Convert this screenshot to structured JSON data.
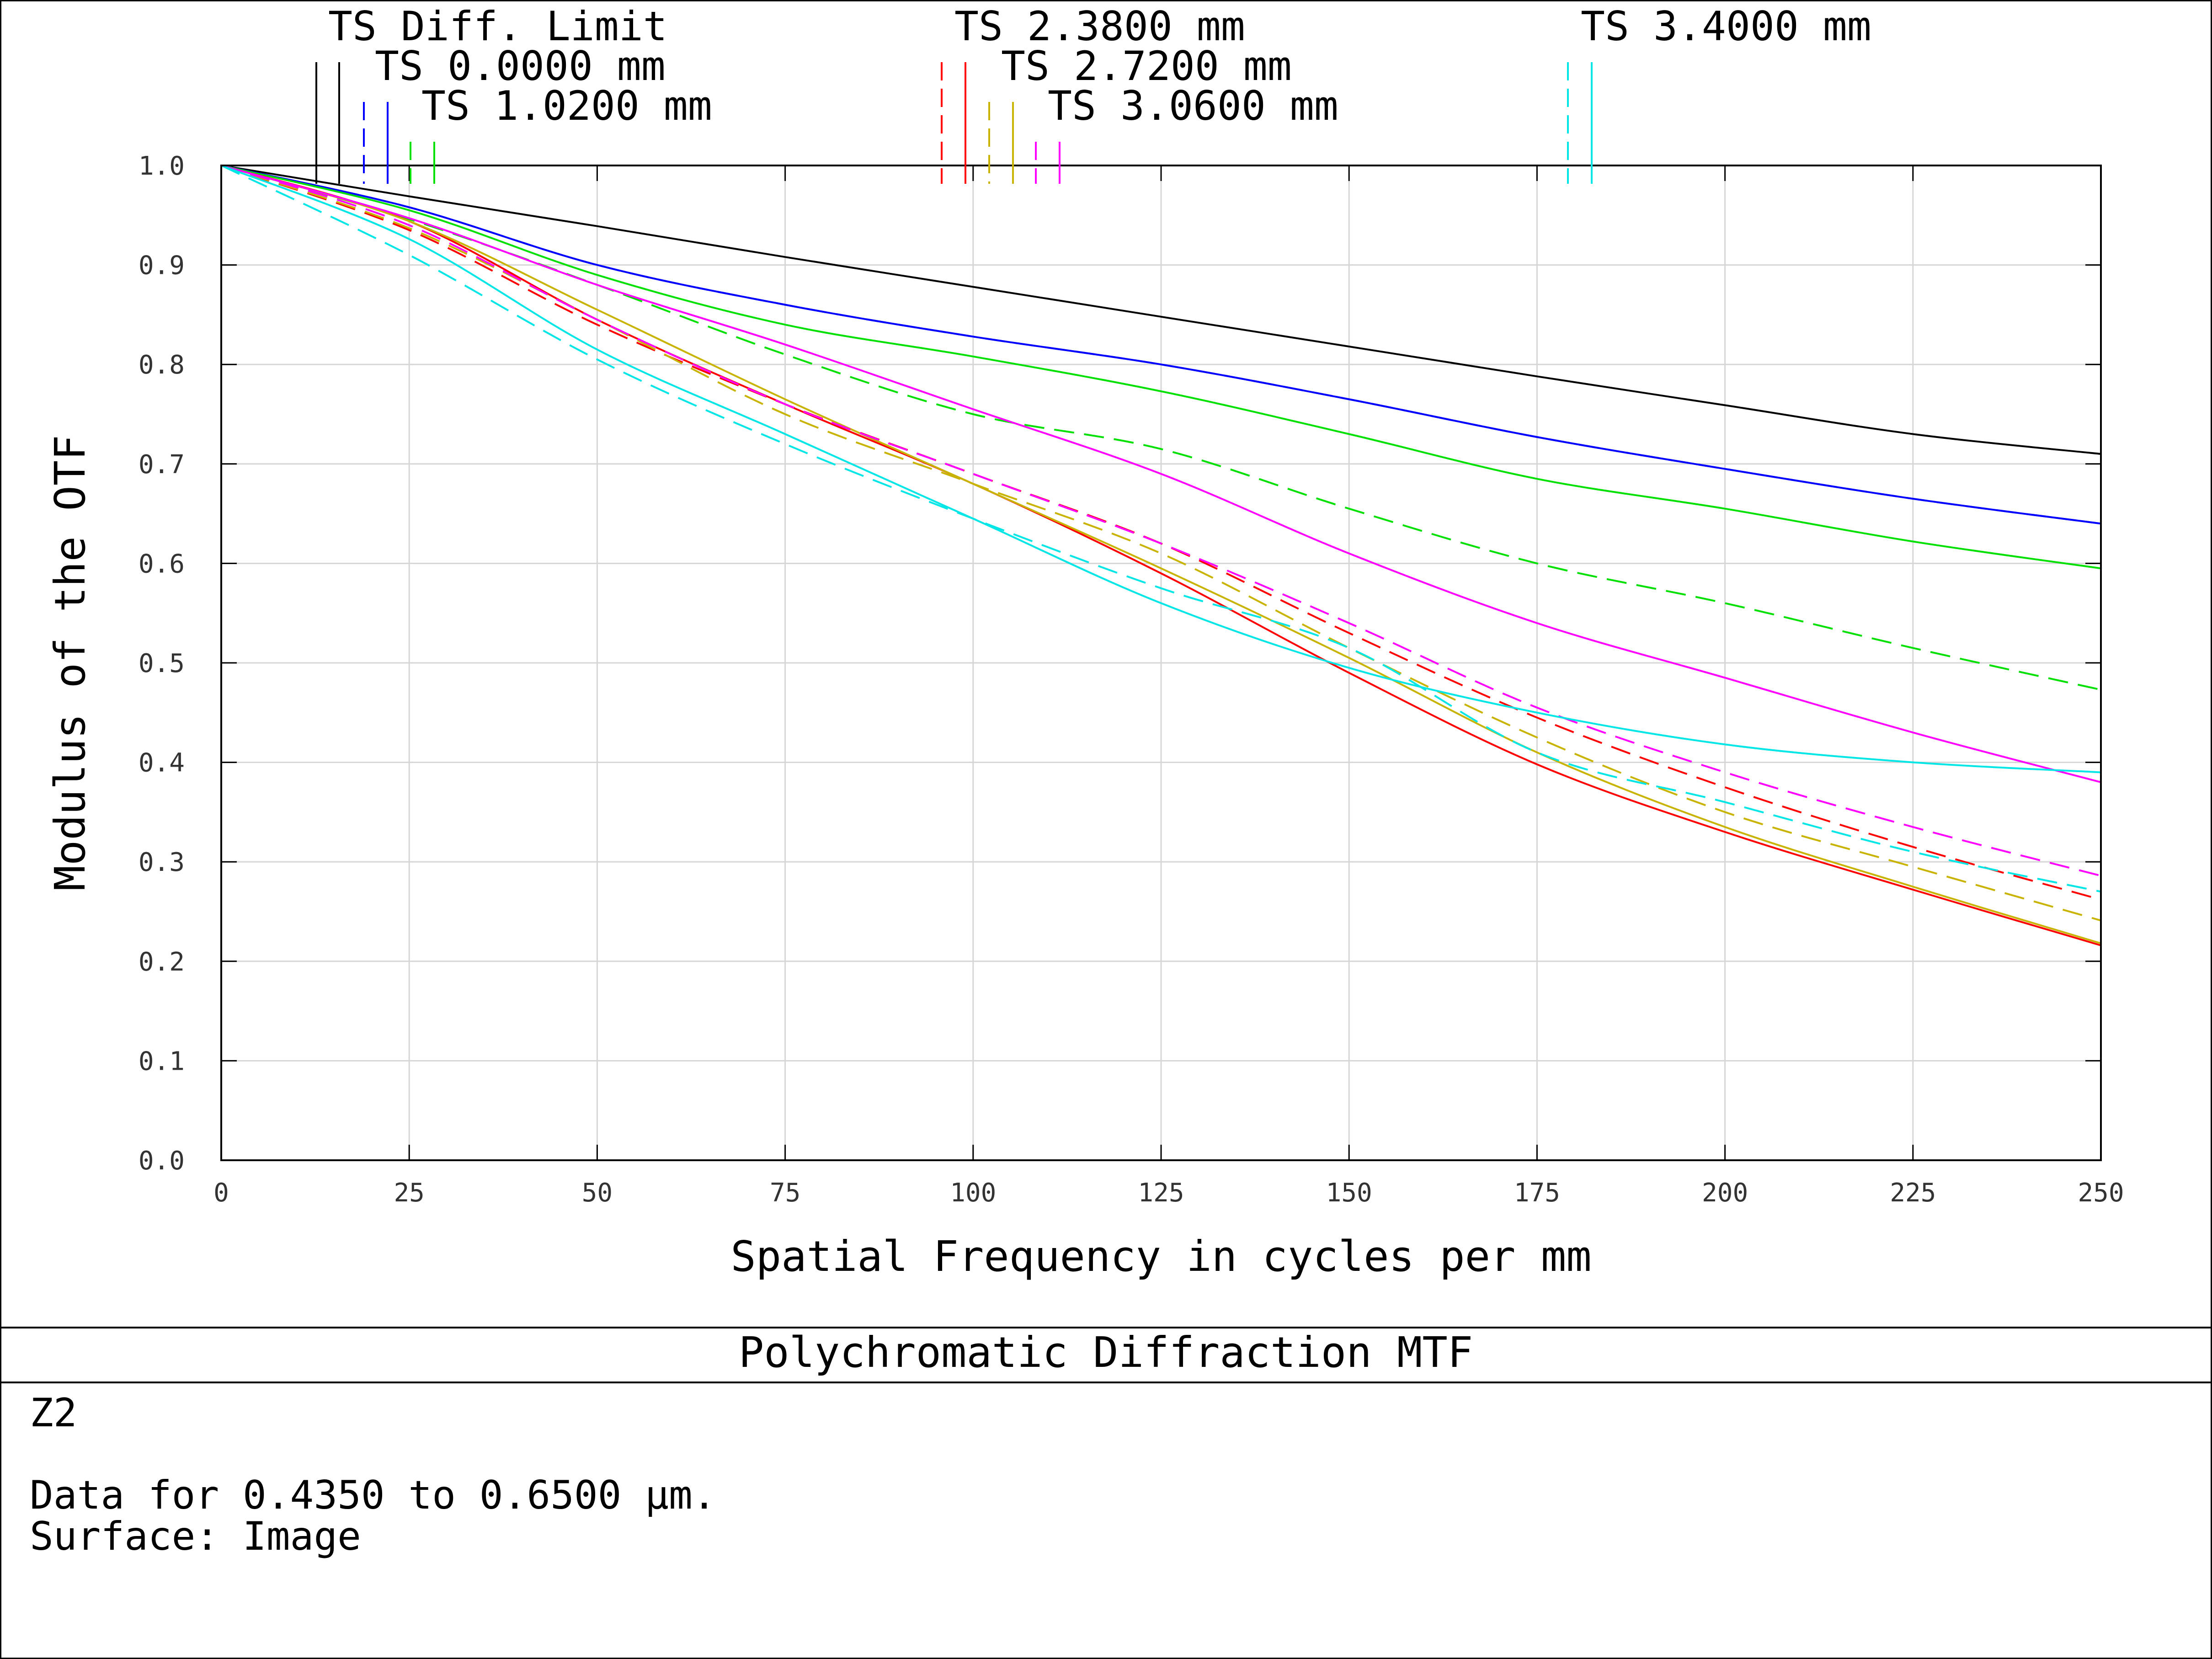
{
  "footer": {
    "title": "Polychromatic Diffraction MTF",
    "lines": [
      "Z2",
      "Data for 0.4350 to 0.6500 µm.",
      "Surface: Image"
    ]
  },
  "chart_data": {
    "type": "line",
    "title": "Polychromatic Diffraction MTF",
    "xlabel": "Spatial Frequency in cycles per mm",
    "ylabel": "Modulus of the OTF",
    "xlim": [
      0,
      250
    ],
    "ylim": [
      0,
      1
    ],
    "x_ticks": [
      "0",
      "25",
      "50",
      "75",
      "100",
      "125",
      "150",
      "175",
      "200",
      "225",
      "250"
    ],
    "y_ticks": [
      "0.0",
      "0.1",
      "0.2",
      "0.3",
      "0.4",
      "0.5",
      "0.6",
      "0.7",
      "0.8",
      "0.9",
      "1.0"
    ],
    "grid": true,
    "legend_placement": "top",
    "legend": [
      {
        "label": "TS Diff. Limit",
        "color": "#000000"
      },
      {
        "label": "TS 0.0000 mm",
        "color": "#0000ff"
      },
      {
        "label": "TS 1.0200 mm",
        "color": "#00e000"
      },
      {
        "label": "TS 2.3800 mm",
        "color": "#ff0000"
      },
      {
        "label": "TS 2.7200 mm",
        "color": "#c8b400"
      },
      {
        "label": "TS 3.0600 mm",
        "color": "#ff00ff"
      },
      {
        "label": "TS 3.4000 mm",
        "color": "#00e6e6"
      }
    ],
    "x": [
      0,
      25,
      50,
      75,
      100,
      125,
      150,
      175,
      200,
      225,
      250
    ],
    "series": [
      {
        "field": "TS Diff. Limit",
        "orientation": "T",
        "color": "#000000",
        "dashed": false,
        "values": [
          1.0,
          0.969,
          0.939,
          0.908,
          0.878,
          0.848,
          0.818,
          0.788,
          0.759,
          0.73,
          0.71
        ]
      },
      {
        "field": "TS 0.0000 mm",
        "orientation": "T",
        "color": "#0000ff",
        "dashed": false,
        "values": [
          1.0,
          0.958,
          0.9,
          0.86,
          0.828,
          0.8,
          0.765,
          0.727,
          0.695,
          0.665,
          0.64
        ]
      },
      {
        "field": "TS 0.0000 mm",
        "orientation": "S",
        "color": "#0000ff",
        "dashed": true,
        "values": [
          1.0,
          0.958,
          0.9,
          0.86,
          0.828,
          0.8,
          0.765,
          0.727,
          0.695,
          0.665,
          0.64
        ]
      },
      {
        "field": "TS 1.0200 mm",
        "orientation": "T",
        "color": "#00e000",
        "dashed": false,
        "values": [
          1.0,
          0.955,
          0.89,
          0.84,
          0.808,
          0.773,
          0.73,
          0.685,
          0.655,
          0.622,
          0.595
        ]
      },
      {
        "field": "TS 1.0200 mm",
        "orientation": "S",
        "color": "#00e000",
        "dashed": true,
        "values": [
          1.0,
          0.946,
          0.88,
          0.81,
          0.75,
          0.715,
          0.655,
          0.6,
          0.56,
          0.515,
          0.473
        ]
      },
      {
        "field": "TS 2.3800 mm",
        "orientation": "T",
        "color": "#ff0000",
        "dashed": false,
        "values": [
          1.0,
          0.944,
          0.845,
          0.76,
          0.68,
          0.59,
          0.49,
          0.398,
          0.33,
          0.272,
          0.216
        ]
      },
      {
        "field": "TS 2.3800 mm",
        "orientation": "S",
        "color": "#ff0000",
        "dashed": true,
        "values": [
          1.0,
          0.935,
          0.84,
          0.76,
          0.69,
          0.62,
          0.53,
          0.445,
          0.375,
          0.315,
          0.262
        ]
      },
      {
        "field": "TS 2.7200 mm",
        "orientation": "T",
        "color": "#c8b400",
        "dashed": false,
        "values": [
          1.0,
          0.944,
          0.855,
          0.765,
          0.68,
          0.595,
          0.505,
          0.41,
          0.335,
          0.275,
          0.218
        ]
      },
      {
        "field": "TS 2.7200 mm",
        "orientation": "S",
        "color": "#c8b400",
        "dashed": true,
        "values": [
          1.0,
          0.937,
          0.845,
          0.75,
          0.68,
          0.61,
          0.515,
          0.425,
          0.35,
          0.295,
          0.241
        ]
      },
      {
        "field": "TS 3.0600 mm",
        "orientation": "T",
        "color": "#ff00ff",
        "dashed": false,
        "values": [
          1.0,
          0.947,
          0.88,
          0.82,
          0.755,
          0.69,
          0.61,
          0.54,
          0.485,
          0.43,
          0.38
        ]
      },
      {
        "field": "TS 3.0600 mm",
        "orientation": "S",
        "color": "#ff00ff",
        "dashed": true,
        "values": [
          1.0,
          0.94,
          0.845,
          0.76,
          0.69,
          0.62,
          0.54,
          0.455,
          0.39,
          0.335,
          0.286
        ]
      },
      {
        "field": "TS 3.4000 mm",
        "orientation": "T",
        "color": "#00e6e6",
        "dashed": false,
        "values": [
          1.0,
          0.926,
          0.815,
          0.73,
          0.645,
          0.56,
          0.495,
          0.45,
          0.418,
          0.4,
          0.39
        ]
      },
      {
        "field": "TS 3.4000 mm",
        "orientation": "S",
        "color": "#00e6e6",
        "dashed": true,
        "values": [
          1.0,
          0.91,
          0.805,
          0.72,
          0.645,
          0.575,
          0.515,
          0.41,
          0.36,
          0.31,
          0.27
        ]
      }
    ]
  }
}
